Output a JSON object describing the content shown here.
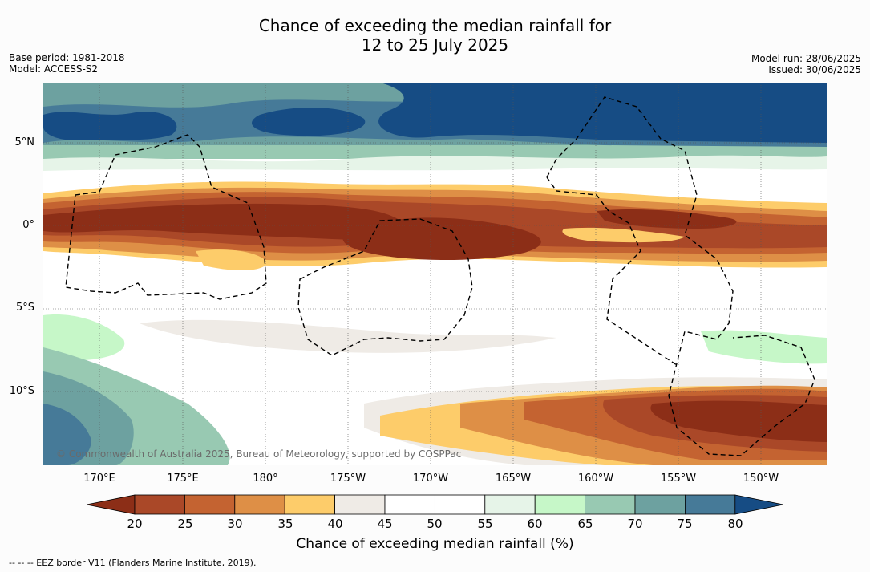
{
  "title": {
    "line1": "Chance of exceeding the median rainfall for",
    "line2": "12 to 25 July 2025"
  },
  "meta": {
    "base_period": "Base period: 1981-2018",
    "model": "Model: ACCESS-S2",
    "model_run": "Model run: 28/06/2025",
    "issued": "Issued: 30/06/2025"
  },
  "latitude_labels": [
    "5°N",
    "0°",
    "5°S",
    "10°S"
  ],
  "longitude_labels": [
    "170°E",
    "175°E",
    "180°",
    "175°W",
    "170°W",
    "165°W",
    "160°W",
    "155°W",
    "150°W"
  ],
  "copyright": "© Commonwealth of Australia 2025, Bureau of Meteorology, supported by COSPPac",
  "colorbar": {
    "label": "Chance of exceeding median rainfall (%)",
    "ticks": [
      "20",
      "25",
      "30",
      "35",
      "40",
      "45",
      "50",
      "55",
      "60",
      "65",
      "70",
      "75",
      "80"
    ],
    "colors": [
      "#8c2e17",
      "#aa4828",
      "#c46331",
      "#de8f46",
      "#fdcc6a",
      "#efebe6",
      "#ffffff",
      "#ffffff",
      "#e6f4e8",
      "#c6f7c8",
      "#98c9b2",
      "#6da1a0",
      "#467a98",
      "#164c84"
    ]
  },
  "footnote": "--  --  -- EEZ border V11 (Flanders Marine Institute, 2019).",
  "map_legend": {
    "border_style": "dashed black",
    "grid": "dotted"
  }
}
